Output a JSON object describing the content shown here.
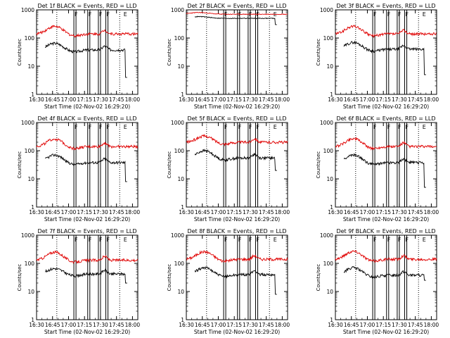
{
  "chart_data": [
    {
      "type": "line",
      "title": "Det 1f  BLACK = Events, RED = LLD",
      "xlabel": "Start Time (02-Nov-02 16:29:20)",
      "ylabel": "Counts/sec",
      "yscale": "log",
      "ylim": [
        1,
        1000
      ],
      "xlim": [
        "16:30",
        "18:05"
      ],
      "x_ticks": [
        "16:30",
        "16:45",
        "17:00",
        "17:15",
        "17:30",
        "17:45",
        "18:00"
      ],
      "y_ticks": [
        "1",
        "10",
        "100",
        "1000"
      ],
      "series": [
        {
          "name": "BLACK = Events",
          "color": "#000000",
          "start": "16:38",
          "end": "17:55",
          "base": 38,
          "bump": 65,
          "drop": 4
        },
        {
          "name": "RED = LLD",
          "color": "#e00000",
          "start": "16:30",
          "end": "18:05",
          "base": 140,
          "bump": 260
        }
      ],
      "markers": {
        "dotted": [
          "16:49",
          "17:48"
        ],
        "solid": [
          "17:05",
          "17:07",
          "17:18",
          "17:20",
          "17:28",
          "17:30",
          "17:35",
          "17:37"
        ],
        "labels": [
          "F",
          "F",
          "F",
          "F",
          "E"
        ]
      }
    },
    {
      "type": "line",
      "title": "Det 2f  BLACK = Events, RED = LLD",
      "xlabel": "Start Time (02-Nov-02 16:29:20)",
      "ylabel": "Counts/sec",
      "yscale": "log",
      "ylim": [
        1,
        1000
      ],
      "xlim": [
        "16:30",
        "18:05"
      ],
      "x_ticks": [
        "16:30",
        "16:45",
        "17:00",
        "17:15",
        "17:30",
        "17:45",
        "18:00"
      ],
      "y_ticks": [
        "1",
        "10",
        "100",
        "1000"
      ],
      "series": [
        {
          "name": "BLACK = Events",
          "color": "#000000",
          "start": "16:38",
          "end": "17:55",
          "base": 500,
          "bump": 600,
          "drop": 300,
          "flat": true
        },
        {
          "name": "RED = LLD",
          "color": "#e00000",
          "start": "16:30",
          "end": "18:05",
          "base": 700,
          "bump": 820,
          "flat": true
        }
      ],
      "markers": {
        "dotted": [
          "16:49",
          "17:48"
        ],
        "solid": [
          "17:05",
          "17:07",
          "17:18",
          "17:20",
          "17:28",
          "17:30",
          "17:35",
          "17:37"
        ],
        "labels": [
          "F",
          "F",
          "F",
          "F",
          "E"
        ]
      }
    },
    {
      "type": "line",
      "title": "Det 3f  BLACK = Events, RED = LLD",
      "xlabel": "Start Time (02-Nov-02 16:29:20)",
      "ylabel": "Counts/sec",
      "yscale": "log",
      "ylim": [
        1,
        1000
      ],
      "xlim": [
        "16:30",
        "18:05"
      ],
      "x_ticks": [
        "16:30",
        "16:45",
        "17:00",
        "17:15",
        "17:30",
        "17:45",
        "18:00"
      ],
      "y_ticks": [
        "1",
        "10",
        "100",
        "1000"
      ],
      "series": [
        {
          "name": "BLACK = Events",
          "color": "#000000",
          "start": "16:38",
          "end": "17:55",
          "base": 40,
          "bump": 70,
          "drop": 5
        },
        {
          "name": "RED = LLD",
          "color": "#e00000",
          "start": "16:30",
          "end": "18:05",
          "base": 140,
          "bump": 260
        }
      ],
      "markers": {
        "dotted": [
          "16:49",
          "17:48"
        ],
        "solid": [
          "17:05",
          "17:07",
          "17:18",
          "17:20",
          "17:28",
          "17:30",
          "17:35",
          "17:37"
        ],
        "labels": [
          "F",
          "F",
          "F",
          "F",
          "E"
        ]
      }
    },
    {
      "type": "line",
      "title": "Det 4f  BLACK = Events, RED = LLD",
      "xlabel": "Start Time (02-Nov-02 16:29:20)",
      "ylabel": "Counts/sec",
      "yscale": "log",
      "ylim": [
        1,
        1000
      ],
      "xlim": [
        "16:30",
        "18:05"
      ],
      "x_ticks": [
        "16:30",
        "16:45",
        "17:00",
        "17:15",
        "17:30",
        "17:45",
        "18:00"
      ],
      "y_ticks": [
        "1",
        "10",
        "100",
        "1000"
      ],
      "series": [
        {
          "name": "BLACK = Events",
          "color": "#000000",
          "start": "16:38",
          "end": "17:55",
          "base": 38,
          "bump": 70,
          "drop": 8
        },
        {
          "name": "RED = LLD",
          "color": "#e00000",
          "start": "16:30",
          "end": "18:05",
          "base": 140,
          "bump": 260
        }
      ],
      "markers": {
        "dotted": [
          "16:49",
          "17:48"
        ],
        "solid": [
          "17:05",
          "17:07",
          "17:18",
          "17:20",
          "17:28",
          "17:30",
          "17:35",
          "17:37"
        ],
        "labels": [
          "F",
          "F",
          "F",
          "F",
          "E"
        ]
      }
    },
    {
      "type": "line",
      "title": "Det 5f  BLACK = Events, RED = LLD",
      "xlabel": "Start Time (02-Nov-02 16:29:20)",
      "ylabel": "Counts/sec",
      "yscale": "log",
      "ylim": [
        1,
        1000
      ],
      "xlim": [
        "16:30",
        "18:05"
      ],
      "x_ticks": [
        "16:30",
        "16:45",
        "17:00",
        "17:15",
        "17:30",
        "17:45",
        "18:00"
      ],
      "y_ticks": [
        "1",
        "10",
        "100",
        "1000"
      ],
      "series": [
        {
          "name": "BLACK = Events",
          "color": "#000000",
          "start": "16:38",
          "end": "17:55",
          "base": 55,
          "bump": 100,
          "drop": 20
        },
        {
          "name": "RED = LLD",
          "color": "#e00000",
          "start": "16:30",
          "end": "18:05",
          "base": 200,
          "bump": 330
        }
      ],
      "markers": {
        "dotted": [
          "16:49",
          "17:48"
        ],
        "solid": [
          "17:05",
          "17:07",
          "17:18",
          "17:20",
          "17:28",
          "17:30",
          "17:35",
          "17:37"
        ],
        "labels": [
          "F",
          "F",
          "F",
          "F",
          "E"
        ]
      }
    },
    {
      "type": "line",
      "title": "Det 6f  BLACK = Events, RED = LLD",
      "xlabel": "Start Time (02-Nov-02 16:29:20)",
      "ylabel": "Counts/sec",
      "yscale": "log",
      "ylim": [
        1,
        1000
      ],
      "xlim": [
        "16:30",
        "18:05"
      ],
      "x_ticks": [
        "16:30",
        "16:45",
        "17:00",
        "17:15",
        "17:30",
        "17:45",
        "18:00"
      ],
      "y_ticks": [
        "1",
        "10",
        "100",
        "1000"
      ],
      "series": [
        {
          "name": "BLACK = Events",
          "color": "#000000",
          "start": "16:38",
          "end": "17:55",
          "base": 38,
          "bump": 70,
          "drop": 5
        },
        {
          "name": "RED = LLD",
          "color": "#e00000",
          "start": "16:30",
          "end": "18:05",
          "base": 140,
          "bump": 270
        }
      ],
      "markers": {
        "dotted": [
          "16:49",
          "17:48"
        ],
        "solid": [
          "17:05",
          "17:07",
          "17:18",
          "17:20",
          "17:28",
          "17:30",
          "17:35",
          "17:37"
        ],
        "labels": [
          "F",
          "F",
          "F",
          "F",
          "E"
        ]
      }
    },
    {
      "type": "line",
      "title": "Det 7f  BLACK = Events, RED = LLD",
      "xlabel": "Start Time (02-Nov-02 16:29:20)",
      "ylabel": "Counts/sec",
      "yscale": "log",
      "ylim": [
        1,
        1000
      ],
      "xlim": [
        "16:30",
        "18:05"
      ],
      "x_ticks": [
        "16:30",
        "16:45",
        "17:00",
        "17:15",
        "17:30",
        "17:45",
        "18:00"
      ],
      "y_ticks": [
        "1",
        "10",
        "100",
        "1000"
      ],
      "series": [
        {
          "name": "BLACK = Events",
          "color": "#000000",
          "start": "16:38",
          "end": "17:55",
          "base": 42,
          "bump": 65,
          "drop": 20
        },
        {
          "name": "RED = LLD",
          "color": "#e00000",
          "start": "16:30",
          "end": "18:05",
          "base": 130,
          "bump": 250
        }
      ],
      "markers": {
        "dotted": [
          "16:49",
          "17:48"
        ],
        "solid": [
          "17:05",
          "17:07",
          "17:18",
          "17:20",
          "17:28",
          "17:30",
          "17:35",
          "17:37"
        ],
        "labels": [
          "F",
          "F",
          "F",
          "F",
          "E"
        ]
      }
    },
    {
      "type": "line",
      "title": "Det 8f  BLACK = Events, RED = LLD",
      "xlabel": "Start Time (02-Nov-02 16:29:20)",
      "ylabel": "Counts/sec",
      "yscale": "log",
      "ylim": [
        1,
        1000
      ],
      "xlim": [
        "16:30",
        "18:05"
      ],
      "x_ticks": [
        "16:30",
        "16:45",
        "17:00",
        "17:15",
        "17:30",
        "17:45",
        "18:00"
      ],
      "y_ticks": [
        "1",
        "10",
        "100",
        "1000"
      ],
      "series": [
        {
          "name": "BLACK = Events",
          "color": "#000000",
          "start": "16:38",
          "end": "17:55",
          "base": 40,
          "bump": 70,
          "drop": 8
        },
        {
          "name": "RED = LLD",
          "color": "#e00000",
          "start": "16:30",
          "end": "18:05",
          "base": 140,
          "bump": 260
        }
      ],
      "markers": {
        "dotted": [
          "16:49",
          "17:48"
        ],
        "solid": [
          "17:05",
          "17:07",
          "17:18",
          "17:20",
          "17:28",
          "17:30",
          "17:35",
          "17:37"
        ],
        "labels": [
          "F",
          "F",
          "F",
          "F",
          "E"
        ]
      }
    },
    {
      "type": "line",
      "title": "Det 9f  BLACK = Events, RED = LLD",
      "xlabel": "Start Time (02-Nov-02 16:29:20)",
      "ylabel": "Counts/sec",
      "yscale": "log",
      "ylim": [
        1,
        1000
      ],
      "xlim": [
        "16:30",
        "18:05"
      ],
      "x_ticks": [
        "16:30",
        "16:45",
        "17:00",
        "17:15",
        "17:30",
        "17:45",
        "18:00"
      ],
      "y_ticks": [
        "1",
        "10",
        "100",
        "1000"
      ],
      "series": [
        {
          "name": "BLACK = Events",
          "color": "#000000",
          "start": "16:38",
          "end": "17:55",
          "base": 38,
          "bump": 70,
          "drop": 25
        },
        {
          "name": "RED = LLD",
          "color": "#e00000",
          "start": "16:30",
          "end": "18:05",
          "base": 140,
          "bump": 270
        }
      ],
      "markers": {
        "dotted": [
          "16:49",
          "17:48"
        ],
        "solid": [
          "17:05",
          "17:07",
          "17:18",
          "17:20",
          "17:28",
          "17:30",
          "17:35",
          "17:37"
        ],
        "labels": [
          "F",
          "F",
          "F",
          "F",
          "E"
        ]
      }
    }
  ]
}
